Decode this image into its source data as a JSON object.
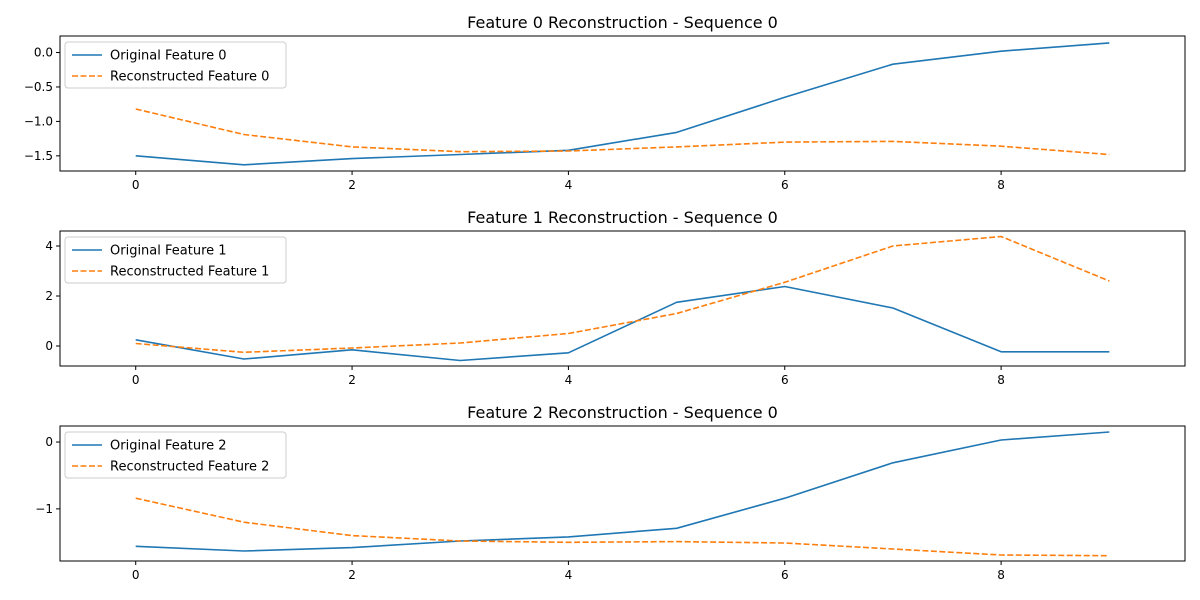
{
  "chart_data": [
    {
      "type": "line",
      "title": "Feature 0 Reconstruction - Sequence 0",
      "xlabel": "",
      "ylabel": "",
      "x": [
        0,
        1,
        2,
        3,
        4,
        5,
        6,
        7,
        8,
        9
      ],
      "xlim": [
        -0.7,
        9.7
      ],
      "ylim": [
        -1.72,
        0.24
      ],
      "xticks": [
        0,
        2,
        4,
        6,
        8
      ],
      "yticks": [
        0.0,
        -0.5,
        -1.0,
        -1.5
      ],
      "ytick_labels": [
        "0.0",
        "−0.5",
        "−1.0",
        "−1.5"
      ],
      "grid": false,
      "legend": "upper-left",
      "series": [
        {
          "name": "Original Feature 0",
          "color": "#1f77b4",
          "style": "solid",
          "values": [
            -1.5,
            -1.63,
            -1.54,
            -1.48,
            -1.42,
            -1.16,
            -0.65,
            -0.17,
            0.02,
            0.14
          ]
        },
        {
          "name": "Reconstructed Feature 0",
          "color": "#ff7f0e",
          "style": "dashed",
          "values": [
            -0.82,
            -1.19,
            -1.37,
            -1.44,
            -1.43,
            -1.37,
            -1.3,
            -1.29,
            -1.36,
            -1.48
          ]
        }
      ]
    },
    {
      "type": "line",
      "title": "Feature 1 Reconstruction - Sequence 0",
      "xlabel": "",
      "ylabel": "",
      "x": [
        0,
        1,
        2,
        3,
        4,
        5,
        6,
        7,
        8,
        9
      ],
      "xlim": [
        -0.7,
        9.7
      ],
      "ylim": [
        -0.8,
        4.6
      ],
      "xticks": [
        0,
        2,
        4,
        6,
        8
      ],
      "yticks": [
        0,
        2,
        4
      ],
      "ytick_labels": [
        "0",
        "2",
        "4"
      ],
      "grid": false,
      "legend": "upper-left",
      "series": [
        {
          "name": "Original Feature 1",
          "color": "#1f77b4",
          "style": "solid",
          "values": [
            0.25,
            -0.52,
            -0.15,
            -0.58,
            -0.27,
            1.75,
            2.38,
            1.52,
            -0.23,
            -0.23
          ]
        },
        {
          "name": "Reconstructed Feature 1",
          "color": "#ff7f0e",
          "style": "dashed",
          "values": [
            0.1,
            -0.25,
            -0.08,
            0.12,
            0.5,
            1.3,
            2.55,
            4.0,
            4.38,
            2.6
          ]
        }
      ]
    },
    {
      "type": "line",
      "title": "Feature 2 Reconstruction - Sequence 0",
      "xlabel": "",
      "ylabel": "",
      "x": [
        0,
        1,
        2,
        3,
        4,
        5,
        6,
        7,
        8,
        9
      ],
      "xlim": [
        -0.7,
        9.7
      ],
      "ylim": [
        -1.78,
        0.24
      ],
      "xticks": [
        0,
        2,
        4,
        6,
        8
      ],
      "yticks": [
        0,
        -1
      ],
      "ytick_labels": [
        "0",
        "−1"
      ],
      "grid": false,
      "legend": "upper-left",
      "series": [
        {
          "name": "Original Feature 2",
          "color": "#1f77b4",
          "style": "solid",
          "values": [
            -1.56,
            -1.63,
            -1.58,
            -1.48,
            -1.42,
            -1.29,
            -0.84,
            -0.31,
            0.03,
            0.15
          ]
        },
        {
          "name": "Reconstructed Feature 2",
          "color": "#ff7f0e",
          "style": "dashed",
          "values": [
            -0.84,
            -1.2,
            -1.4,
            -1.48,
            -1.5,
            -1.49,
            -1.51,
            -1.6,
            -1.69,
            -1.7
          ]
        }
      ]
    }
  ]
}
